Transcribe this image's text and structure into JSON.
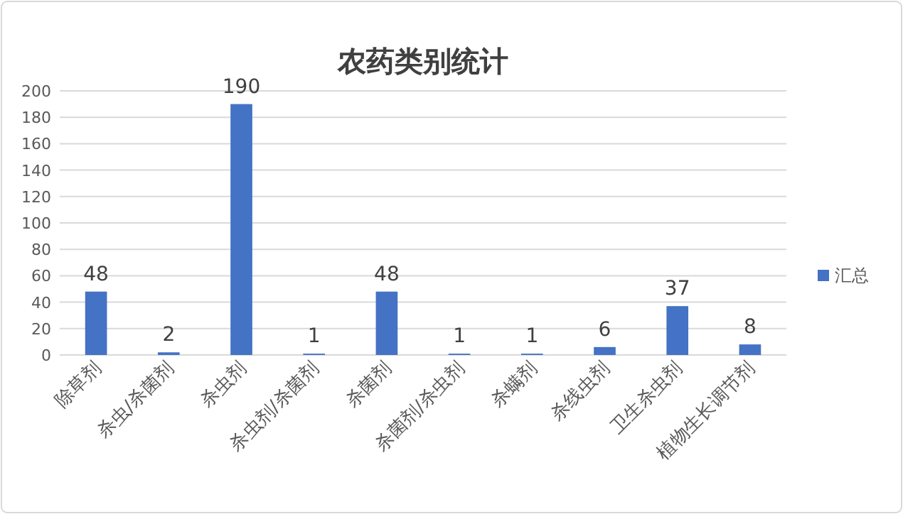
{
  "chart_data": {
    "type": "bar",
    "title": "农药类别统计",
    "categories": [
      "除草剂",
      "杀虫/杀菌剂",
      "杀虫剂",
      "杀虫剂/杀菌剂",
      "杀菌剂",
      "杀菌剂/杀虫剂",
      "杀螨剂",
      "杀线虫剂",
      "卫生杀虫剂",
      "植物生长调节剂"
    ],
    "series": [
      {
        "name": "汇总",
        "color": "#4472c4",
        "values": [
          48,
          2,
          190,
          1,
          48,
          1,
          1,
          6,
          37,
          8
        ]
      }
    ],
    "ylim": [
      0,
      200
    ],
    "yticks": [
      0,
      20,
      40,
      60,
      80,
      100,
      120,
      140,
      160,
      180,
      200
    ],
    "grid": "y",
    "legend": "right",
    "data_labels": true
  }
}
